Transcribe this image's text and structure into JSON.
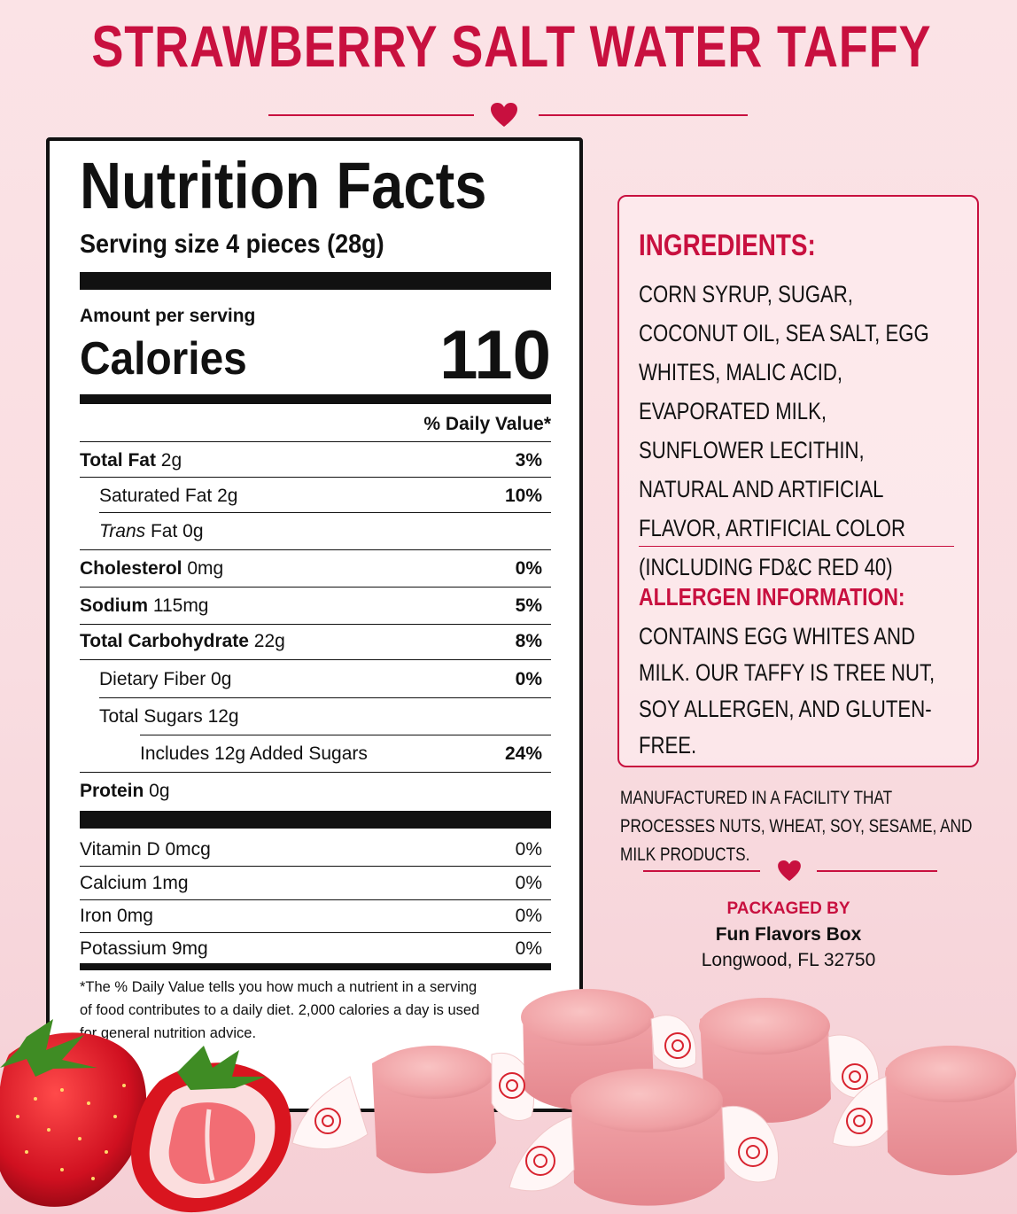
{
  "title": "STRAWBERRY SALT WATER TAFFY",
  "colors": {
    "accent": "#c8103f",
    "background": "#fbe3e6",
    "panel": "#ffffff"
  },
  "nutrition": {
    "heading": "Nutrition Facts",
    "serving_size": "Serving size 4 pieces (28g)",
    "amount_per_serving": "Amount per serving",
    "calories_label": "Calories",
    "calories_value": "110",
    "daily_value_header": "% Daily Value*",
    "rows": [
      {
        "label": "Total Fat",
        "amount": " 2g",
        "dv": "3%"
      },
      {
        "label": "Saturated Fat",
        "amount": " 2g",
        "dv": "10%"
      },
      {
        "label": "Trans",
        "amount": " Fat 0g",
        "dv": ""
      },
      {
        "label": "Cholesterol",
        "amount": " 0mg",
        "dv": "0%"
      },
      {
        "label": "Sodium",
        "amount": " 115mg",
        "dv": "5%"
      },
      {
        "label": "Total Carbohydrate",
        "amount": " 22g",
        "dv": "8%"
      },
      {
        "label": "Dietary Fiber",
        "amount": " 0g",
        "dv": "0%"
      },
      {
        "label": "Total Sugars",
        "amount": " 12g",
        "dv": ""
      },
      {
        "label": "Includes 12g Added Sugars",
        "amount": "",
        "dv": "24%"
      },
      {
        "label": "Protein",
        "amount": " 0g",
        "dv": ""
      }
    ],
    "vitamins": [
      {
        "label": "Vitamin D 0mcg",
        "dv": "0%"
      },
      {
        "label": "Calcium 1mg",
        "dv": "0%"
      },
      {
        "label": "Iron 0mg",
        "dv": "0%"
      },
      {
        "label": "Potassium 9mg",
        "dv": "0%"
      }
    ],
    "footnote": "*The % Daily Value tells you how much a nutrient in a serving of food contributes to a daily diet. 2,000 calories a day is used for general nutrition advice."
  },
  "ingredients": {
    "heading": "INGREDIENTS:",
    "text": "CORN SYRUP, SUGAR, COCONUT OIL, SEA SALT, EGG WHITES, MALIC ACID, EVAPORATED MILK, SUNFLOWER LECITHIN, NATURAL AND ARTIFICIAL FLAVOR, ARTIFICIAL COLOR (INCLUDING FD&C RED 40)",
    "allergen_heading": "ALLERGEN INFORMATION:",
    "allergen_text": "CONTAINS EGG WHITES AND MILK. OUR TAFFY IS TREE NUT, SOY ALLERGEN, AND GLUTEN-FREE."
  },
  "facility_note": "MANUFACTURED IN A FACILITY THAT PROCESSES NUTS, WHEAT, SOY, SESAME, AND MILK PRODUCTS.",
  "packager": {
    "label": "PACKAGED BY",
    "name": "Fun Flavors Box",
    "address": "Longwood, FL 32750"
  },
  "icons": [
    "heart-icon",
    "heart-icon"
  ]
}
